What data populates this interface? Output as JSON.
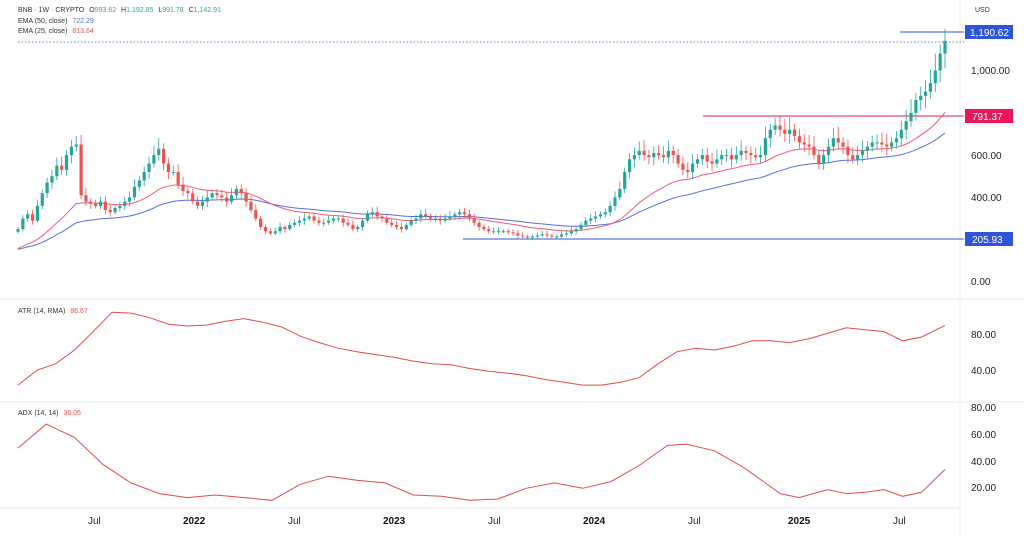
{
  "header": {
    "symbol": "BNB · 1W · CRYPTO",
    "open_label": "O",
    "open": "993.62",
    "high_label": "H",
    "high": "1,192.85",
    "low_label": "L",
    "low": "991.78",
    "close_label": "C",
    "close": "1,142.91",
    "currency": "USD"
  },
  "legend": [
    {
      "label": "EMA (50, close)",
      "value": "722.29",
      "color": "#4f6fd8"
    },
    {
      "label": "EMA (25, close)",
      "value": "813.64",
      "color": "#e8506a"
    }
  ],
  "colors": {
    "up": "#26a69a",
    "down": "#ef5350",
    "ema50": "#5470e0",
    "ema25": "#ee5b74",
    "indicator": "#e04c4c",
    "level_blue": "#2f54d6",
    "level_red": "#e8185a"
  },
  "chart_data": [
    {
      "type": "candlestick",
      "title": "BNB · 1W · CRYPTO",
      "ylabel": "USD",
      "y_ticks": [
        "1,000.00",
        "600.00",
        "400.00",
        "0.00"
      ],
      "ylim": [
        -30,
        1250
      ],
      "x_ticks": [
        "Jul",
        "2022",
        "Jul",
        "2023",
        "Jul",
        "2024",
        "Jul",
        "2025",
        "Jul"
      ],
      "approx_weekly_close": [
        250,
        300,
        320,
        290,
        360,
        420,
        470,
        500,
        550,
        530,
        600,
        640,
        650,
        410,
        380,
        370,
        360,
        380,
        340,
        330,
        350,
        360,
        380,
        400,
        450,
        480,
        520,
        560,
        600,
        630,
        560,
        520,
        520,
        460,
        430,
        420,
        380,
        360,
        380,
        400,
        420,
        410,
        400,
        380,
        410,
        440,
        420,
        380,
        340,
        300,
        260,
        240,
        230,
        240,
        260,
        250,
        270,
        280,
        290,
        300,
        310,
        290,
        280,
        280,
        290,
        300,
        300,
        280,
        270,
        250,
        260,
        290,
        320,
        330,
        310,
        300,
        280,
        270,
        260,
        250,
        270,
        290,
        300,
        320,
        310,
        300,
        300,
        290,
        300,
        310,
        320,
        330,
        320,
        300,
        280,
        260,
        250,
        240,
        240,
        240,
        240,
        235,
        230,
        220,
        215,
        210,
        215,
        220,
        225,
        220,
        215,
        215,
        225,
        230,
        240,
        250,
        270,
        290,
        300,
        310,
        320,
        330,
        360,
        400,
        440,
        520,
        580,
        600,
        620,
        600,
        590,
        610,
        600,
        590,
        620,
        600,
        560,
        530,
        520,
        560,
        580,
        600,
        570,
        560,
        580,
        600,
        600,
        580,
        600,
        620,
        610,
        600,
        590,
        600,
        680,
        720,
        740,
        720,
        700,
        720,
        690,
        660,
        650,
        640,
        600,
        560,
        600,
        640,
        680,
        660,
        640,
        600,
        580,
        600,
        620,
        640,
        660,
        660,
        650,
        640,
        660,
        680,
        720,
        760,
        800,
        860,
        880,
        900,
        940,
        1000,
        1080,
        1140
      ],
      "ema50_final": 722.29,
      "ema25_final": 813.64,
      "levels": [
        {
          "value": 1190.62,
          "label": "1,190.62",
          "color": "#2f54d6"
        },
        {
          "value": 791.37,
          "label": "791.37",
          "color": "#e8185a"
        },
        {
          "value": 205.93,
          "label": "205.93",
          "color": "#2f54d6"
        }
      ]
    },
    {
      "type": "line",
      "title": "ATR (14, RMA)",
      "series_name": "ATR (14, RMA)",
      "latest": "86.67",
      "y_ticks": [
        "80.00",
        "40.00"
      ],
      "ylim": [
        8,
        112
      ],
      "x": [
        0,
        4,
        8,
        12,
        16,
        20,
        24,
        28,
        32,
        36,
        40,
        44,
        48,
        52,
        56,
        60,
        64,
        68,
        72,
        76,
        80,
        84,
        88,
        92,
        96,
        100,
        104,
        108,
        112,
        116,
        120,
        124,
        128,
        132,
        136,
        140,
        144,
        148,
        152,
        156,
        160,
        164,
        168,
        172,
        176,
        180,
        184,
        188,
        192,
        197
      ],
      "values": [
        22,
        38,
        45,
        60,
        80,
        101,
        100,
        95,
        88,
        86,
        87,
        91,
        94,
        90,
        85,
        75,
        68,
        62,
        58,
        55,
        52,
        48,
        45,
        44,
        40,
        37,
        35,
        32,
        28,
        25,
        22,
        22,
        25,
        30,
        45,
        58,
        62,
        60,
        64,
        70,
        70,
        68,
        72,
        78,
        84,
        82,
        80,
        70,
        74,
        86.67
      ]
    },
    {
      "type": "line",
      "title": "ADX (14, 14)",
      "series_name": "ADX (14, 14)",
      "latest": "36.05",
      "y_ticks": [
        "80.00",
        "60.00",
        "40.00",
        "20.00"
      ],
      "ylim": [
        8,
        85
      ],
      "x": [
        0,
        6,
        12,
        18,
        24,
        30,
        36,
        42,
        48,
        54,
        60,
        66,
        72,
        78,
        84,
        90,
        96,
        102,
        108,
        114,
        120,
        126,
        132,
        138,
        142,
        148,
        154,
        158,
        162,
        166,
        172,
        176,
        180,
        184,
        188,
        192,
        197
      ],
      "values": [
        52,
        70,
        60,
        40,
        26,
        18,
        15,
        17,
        15,
        13,
        25,
        31,
        28,
        26,
        17,
        16,
        13,
        14,
        22,
        26,
        22,
        27,
        39,
        54,
        55,
        50,
        38,
        28,
        18,
        15,
        21,
        18,
        19,
        21,
        16,
        19,
        36.05
      ]
    }
  ]
}
